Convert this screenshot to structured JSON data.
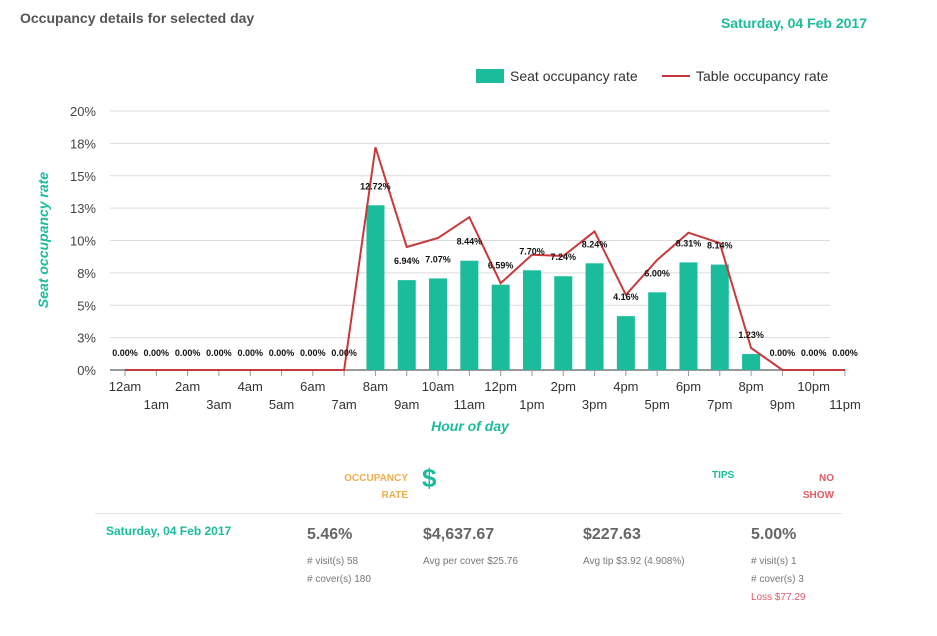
{
  "page": {
    "title": "Occupancy details for selected day",
    "date": "Saturday, 04 Feb 2017"
  },
  "chart_data": {
    "type": "bar",
    "xlabel": "Hour of day",
    "ylabel": "Seat occupancy rate",
    "ylim": [
      0,
      20
    ],
    "y_ticks": [
      "0%",
      "3%",
      "5%",
      "8%",
      "10%",
      "13%",
      "15%",
      "18%",
      "20%"
    ],
    "categories": [
      "12am",
      "1am",
      "2am",
      "3am",
      "4am",
      "5am",
      "6am",
      "7am",
      "8am",
      "9am",
      "10am",
      "11am",
      "12pm",
      "1pm",
      "2pm",
      "3pm",
      "4pm",
      "5pm",
      "6pm",
      "7pm",
      "8pm",
      "9pm",
      "10pm",
      "11pm"
    ],
    "legend": {
      "position": "top-right"
    },
    "grid": true,
    "series": [
      {
        "name": "Seat occupancy rate",
        "type": "bar",
        "color": "#1bbc9b",
        "values": [
          0,
          0,
          0,
          0,
          0,
          0,
          0,
          0,
          12.72,
          6.94,
          7.07,
          8.44,
          6.59,
          7.7,
          7.24,
          8.24,
          4.16,
          6.0,
          8.31,
          8.14,
          1.23,
          0,
          0,
          0
        ],
        "data_labels": [
          "0.00%",
          "0.00%",
          "0.00%",
          "0.00%",
          "0.00%",
          "0.00%",
          "0.00%",
          "0.00%",
          "12.72%",
          "6.94%",
          "7.07%",
          "8.44%",
          "6.59%",
          "7.70%",
          "7.24%",
          "8.24%",
          "4.16%",
          "6.00%",
          "8.31%",
          "8.14%",
          "1.23%",
          "0.00%",
          "0.00%",
          "0.00%"
        ]
      },
      {
        "name": "Table occupancy rate",
        "type": "line",
        "color": "#c9383a",
        "values": [
          0,
          0,
          0,
          0,
          0,
          0,
          0,
          0,
          17.2,
          9.5,
          10.2,
          11.8,
          6.7,
          8.9,
          8.8,
          10.7,
          5.8,
          8.5,
          10.6,
          9.8,
          1.7,
          0,
          0,
          0
        ]
      }
    ]
  },
  "summary": {
    "occupancy_header": [
      "OCCUPANCY",
      "RATE"
    ],
    "revenue_icon": "dollar-icon",
    "revenue_symbol": "$",
    "tips_header": "TIPS",
    "noshow_header": [
      "NO",
      "SHOW"
    ],
    "row": {
      "date": "Saturday, 04 Feb 2017",
      "occupancy": {
        "value": "5.46%",
        "visits": "# visit(s) 58",
        "covers": "# cover(s) 180"
      },
      "revenue": {
        "value": "$4,637.67",
        "avg": "Avg per cover $25.76"
      },
      "tips": {
        "value": "$227.63",
        "avg": "Avg tip $3.92 (4.908%)"
      },
      "noshow": {
        "value": "5.00%",
        "visits": "# visit(s) 1",
        "covers": "# cover(s) 3",
        "loss": "Loss $77.29"
      }
    }
  }
}
